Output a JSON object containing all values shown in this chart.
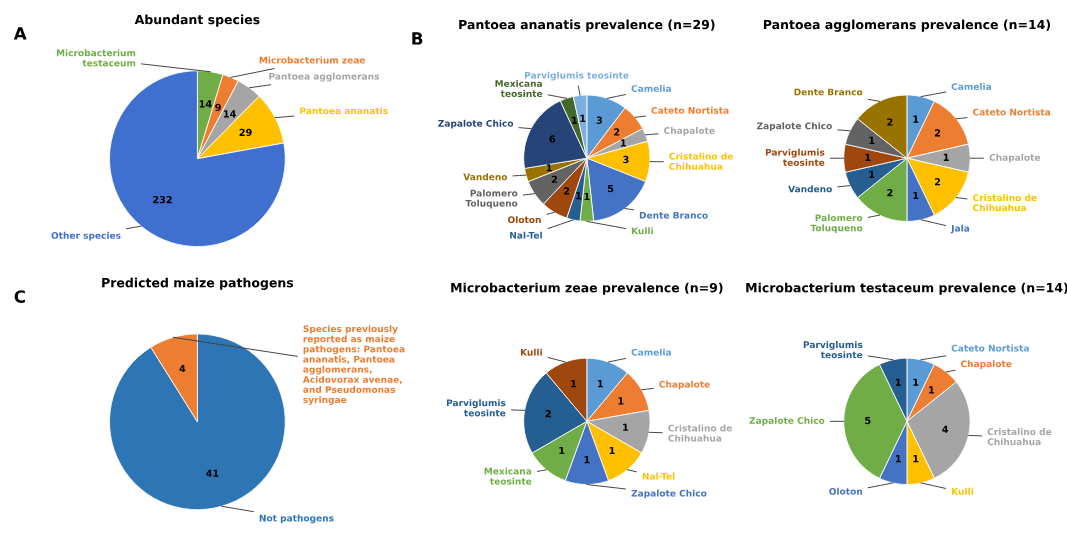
{
  "chart_data": [
    {
      "type": "pie",
      "title": "Abundant species",
      "annotations": [
        "A"
      ],
      "data_labels": true,
      "categories": [
        "Microbacterium\ntestaceum",
        "Microbacterium zeae",
        "Pantoea agglomerans",
        "Pantoea ananatis",
        "Other species"
      ],
      "values": [
        14,
        9,
        14,
        29,
        232
      ],
      "colors": [
        "#70ad47",
        "#ed7d31",
        "#a5a5a5",
        "#ffc000",
        "#3f6fcf"
      ]
    },
    {
      "type": "pie",
      "title": "Pantoea ananatis prevalence (n=29)",
      "annotations": [
        "B"
      ],
      "data_labels": true,
      "categories": [
        "Camelia",
        "Cateto Nortista",
        "Chapalote",
        "Cristalino de\nChihuahua",
        "Dente Branco",
        "Kulli",
        "Nal-Tel",
        "Oloton",
        "Palomero\nToluqueno",
        "Vandeno",
        "Zapalote Chico",
        "Mexicana\nteosinte",
        "Parviglumis teosinte"
      ],
      "values": [
        3,
        2,
        1,
        3,
        5,
        1,
        1,
        2,
        2,
        1,
        6,
        1,
        1
      ],
      "colors": [
        "#5b9bd5",
        "#ed7d31",
        "#a5a5a5",
        "#ffc000",
        "#4472c4",
        "#70ad47",
        "#255e91",
        "#9e480e",
        "#636363",
        "#997300",
        "#264478",
        "#43682b",
        "#7cafdd"
      ]
    },
    {
      "type": "pie",
      "title": "Pantoea agglomerans prevalence (n=14)",
      "data_labels": true,
      "categories": [
        "Camelia",
        "Cateto Nortista",
        "Chapalote",
        "Cristalino de\nChihuahua",
        "Jala",
        "Palomero\nToluqueno",
        "Vandeno",
        "Parviglumis\nteosinte",
        "Zapalote Chico",
        "Dente Branco"
      ],
      "values": [
        1,
        2,
        1,
        2,
        1,
        2,
        1,
        1,
        1,
        2
      ],
      "colors": [
        "#5b9bd5",
        "#ed7d31",
        "#a5a5a5",
        "#ffc000",
        "#4472c4",
        "#70ad47",
        "#255e91",
        "#9e480e",
        "#636363",
        "#997300"
      ]
    },
    {
      "type": "pie",
      "title": "Predicted maize pathogens",
      "annotations": [
        "C"
      ],
      "data_labels": true,
      "categories": [
        "Not pathogens",
        "Species previously\nreported as maize\npathogens: Pantoea\nananatis, Pantoea\nagglomerans,\nAcidovorax avenae,\nand Pseudomonas\nsyringae"
      ],
      "values": [
        41,
        4
      ],
      "colors": [
        "#2e75b6",
        "#ed7d31"
      ]
    },
    {
      "type": "pie",
      "title": "Microbacterium zeae prevalence (n=9)",
      "data_labels": true,
      "categories": [
        "Camelia",
        "Chapalote",
        "Cristalino de\nChihuahua",
        "Nal-Tel",
        "Zapalote Chico",
        "Mexicana\nteosinte",
        "Parviglumis\nteosinte",
        "Kulli"
      ],
      "values": [
        1,
        1,
        1,
        1,
        1,
        1,
        2,
        1
      ],
      "colors": [
        "#5b9bd5",
        "#ed7d31",
        "#a5a5a5",
        "#ffc000",
        "#4472c4",
        "#70ad47",
        "#255e91",
        "#9e480e"
      ]
    },
    {
      "type": "pie",
      "title": "Microbacterium testaceum prevalence (n=14)",
      "data_labels": true,
      "categories": [
        "Cateto Nortista",
        "Chapalote",
        "Cristalino de\nChihuahua",
        "Kulli",
        "Oloton",
        "Zapalote Chico",
        "Parviglumis\nteosinte"
      ],
      "values": [
        1,
        1,
        4,
        1,
        1,
        5,
        1
      ],
      "colors": [
        "#5b9bd5",
        "#ed7d31",
        "#a5a5a5",
        "#ffc000",
        "#4472c4",
        "#70ad47",
        "#255e91"
      ]
    }
  ]
}
